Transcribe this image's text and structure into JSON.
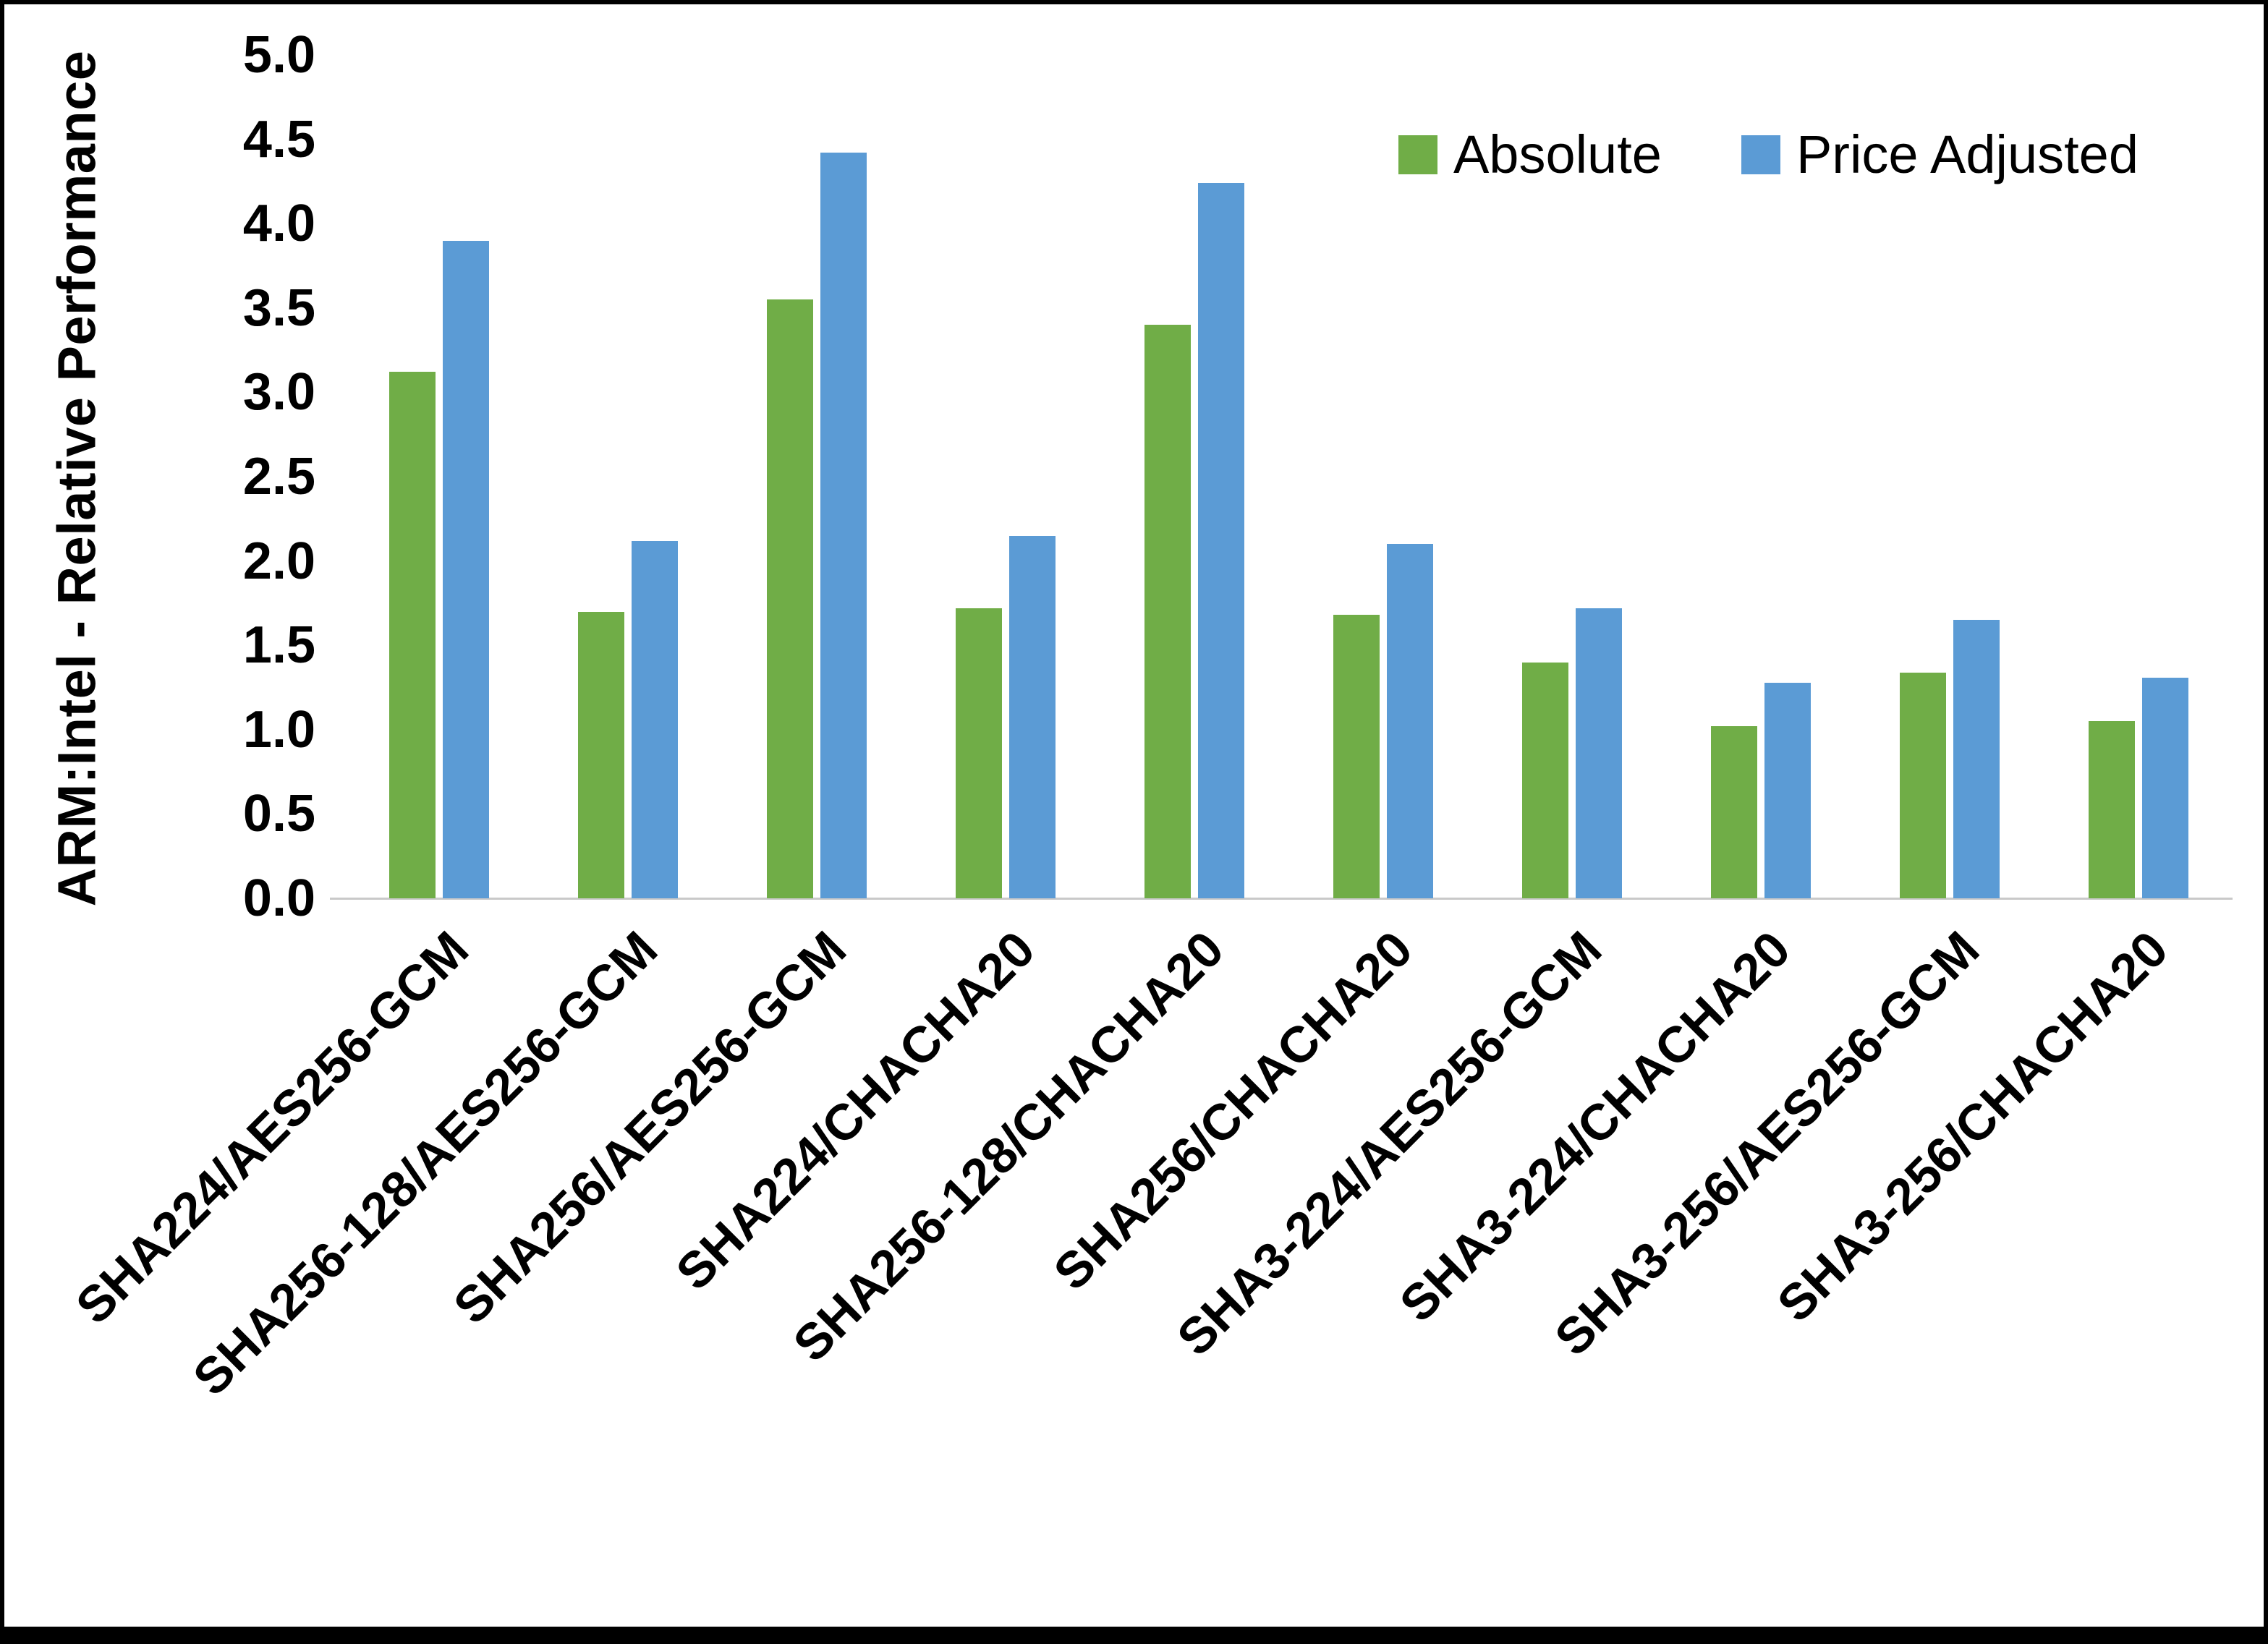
{
  "chart_data": {
    "type": "bar",
    "title": "",
    "xlabel": "",
    "ylabel": "ARM:Intel - Relative Performance",
    "ylim": [
      0,
      5
    ],
    "ytick_step": 0.5,
    "yticks": [
      "0.0",
      "0.5",
      "1.0",
      "1.5",
      "2.0",
      "2.5",
      "3.0",
      "3.5",
      "4.0",
      "4.5",
      "5.0"
    ],
    "grid": false,
    "legend_position": "top-right",
    "categories": [
      "SHA224/AES256-GCM",
      "SHA256-128/AES256-GCM",
      "SHA256/AES256-GCM",
      "SHA224/CHACHA20",
      "SHA256-128/CHACHA20",
      "SHA256/CHACHA20",
      "SHA3-224/AES256-GCM",
      "SHA3-224/CHACHA20",
      "SHA3-256/AES256-GCM",
      "SHA3-256/CHACHA20"
    ],
    "series": [
      {
        "name": "Absolute",
        "color": "#70AD47",
        "values": [
          3.12,
          1.7,
          3.55,
          1.72,
          3.4,
          1.68,
          1.4,
          1.02,
          1.34,
          1.05
        ]
      },
      {
        "name": "Price Adjusted",
        "color": "#5B9BD5",
        "values": [
          3.9,
          2.12,
          4.42,
          2.15,
          4.24,
          2.1,
          1.72,
          1.28,
          1.65,
          1.31
        ]
      }
    ],
    "colors": {
      "text": "#000000",
      "axis_line": "#c9c9c9",
      "background": "#ffffff",
      "frame_border": "#000000"
    }
  }
}
